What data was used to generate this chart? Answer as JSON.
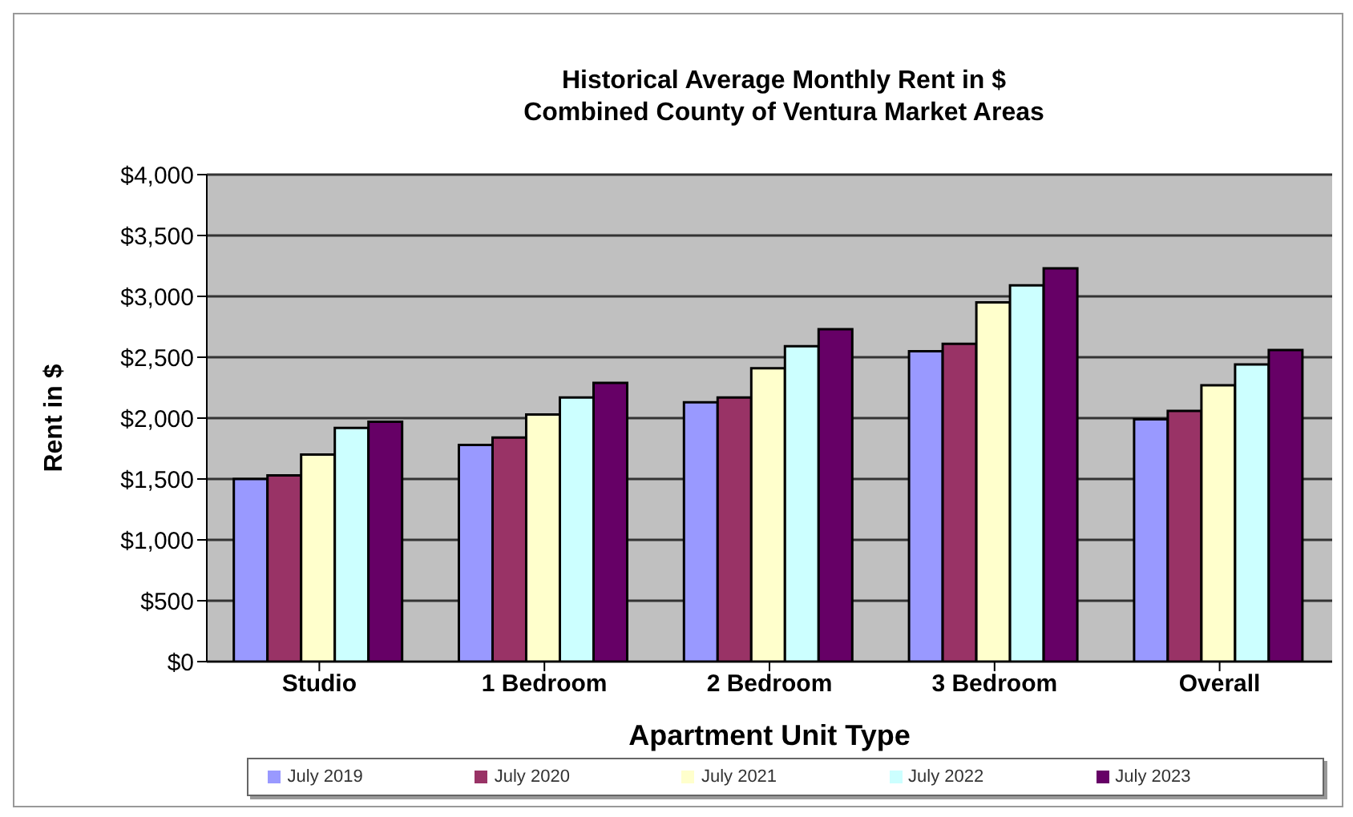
{
  "chart_data": {
    "type": "bar",
    "title": "Historical Average Monthly Rent in $\nCombined County of Ventura Market Areas",
    "xlabel": "Apartment Unit Type",
    "ylabel": "Rent in $",
    "categories": [
      "Studio",
      "1 Bedroom",
      "2 Bedroom",
      "3 Bedroom",
      "Overall"
    ],
    "series": [
      {
        "name": "July 2019",
        "color": "#9999ff",
        "values": [
          1500,
          1780,
          2130,
          2550,
          1990
        ]
      },
      {
        "name": "July 2020",
        "color": "#993366",
        "values": [
          1530,
          1840,
          2170,
          2610,
          2060
        ]
      },
      {
        "name": "July 2021",
        "color": "#ffffcc",
        "values": [
          1700,
          2030,
          2410,
          2950,
          2270
        ]
      },
      {
        "name": "July 2022",
        "color": "#ccffff",
        "values": [
          1920,
          2170,
          2590,
          3090,
          2440
        ]
      },
      {
        "name": "July 2023",
        "color": "#660066",
        "values": [
          1970,
          2290,
          2730,
          3230,
          2560
        ]
      }
    ],
    "ylim": [
      0,
      4000
    ],
    "yticks": [
      {
        "value": 0,
        "label": "$0"
      },
      {
        "value": 500,
        "label": "$500"
      },
      {
        "value": 1000,
        "label": "$1,000"
      },
      {
        "value": 1500,
        "label": "$1,500"
      },
      {
        "value": 2000,
        "label": "$2,000"
      },
      {
        "value": 2500,
        "label": "$2,500"
      },
      {
        "value": 3000,
        "label": "$3,000"
      },
      {
        "value": 3500,
        "label": "$3,500"
      },
      {
        "value": 4000,
        "label": "$4,000"
      }
    ],
    "grid": "y",
    "legend": "bottom"
  }
}
